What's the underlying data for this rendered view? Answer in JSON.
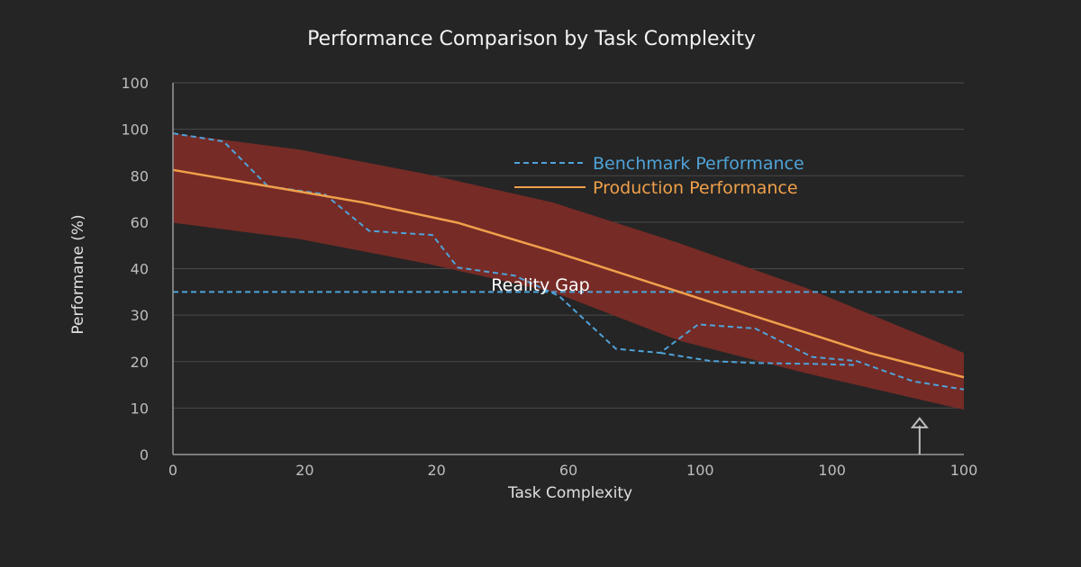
{
  "chart_data": {
    "type": "line",
    "title": "Performance Comparison by Task Complexity",
    "xlabel": "Task Complexity",
    "ylabel": "Performane (%)",
    "x_tick_labels": [
      "0",
      "20",
      "20",
      "60",
      "100",
      "100",
      "100"
    ],
    "y_tick_labels": [
      "0",
      "10",
      "20",
      "30",
      "40",
      "60",
      "80",
      "100",
      "100"
    ],
    "grid": true,
    "legend_position": "top-right",
    "annotation": "Reality Gap",
    "series": [
      {
        "name": "Benchmark Performance",
        "style": "dashed",
        "color": "#4fa3d9",
        "points": [
          [
            0,
            79
          ],
          [
            8,
            77
          ],
          [
            15,
            66
          ],
          [
            24,
            64
          ],
          [
            31,
            55
          ],
          [
            41,
            54
          ],
          [
            45,
            46
          ],
          [
            54,
            44
          ],
          [
            61,
            39
          ],
          [
            70,
            26
          ],
          [
            77,
            25
          ],
          [
            83,
            32
          ],
          [
            92,
            31
          ],
          [
            101,
            24
          ],
          [
            108,
            23
          ],
          [
            117,
            18
          ],
          [
            125,
            16
          ]
        ]
      },
      {
        "name": "",
        "style": "dashed",
        "color": "#4fa3d9",
        "points": [
          [
            0,
            40
          ],
          [
            125,
            40
          ]
        ]
      },
      {
        "name": "",
        "style": "dashed",
        "color": "#4fa3d9",
        "points": [
          [
            77,
            25
          ],
          [
            85,
            23
          ],
          [
            92,
            22.5
          ],
          [
            101,
            22.3
          ],
          [
            108,
            22
          ]
        ]
      },
      {
        "name": "Production Performance",
        "style": "solid",
        "color": "#f0a04b",
        "points": [
          [
            0,
            70
          ],
          [
            15,
            66
          ],
          [
            30,
            62
          ],
          [
            45,
            57
          ],
          [
            60,
            50
          ],
          [
            70,
            45
          ],
          [
            80,
            40
          ],
          [
            90,
            35
          ],
          [
            100,
            30
          ],
          [
            110,
            25
          ],
          [
            125,
            19
          ]
        ]
      },
      {
        "name": "",
        "style": "band",
        "color": "#7a2b26",
        "upper": [
          [
            0,
            79
          ],
          [
            20,
            75
          ],
          [
            40,
            69
          ],
          [
            60,
            62
          ],
          [
            80,
            52
          ],
          [
            100,
            41
          ],
          [
            125,
            25
          ]
        ],
        "lower": [
          [
            0,
            57
          ],
          [
            20,
            53
          ],
          [
            40,
            47
          ],
          [
            60,
            40
          ],
          [
            80,
            28
          ],
          [
            100,
            20
          ],
          [
            125,
            11
          ]
        ]
      }
    ],
    "arrow_annotation": {
      "x": 118,
      "from_y": 0,
      "to_y": 8
    }
  }
}
